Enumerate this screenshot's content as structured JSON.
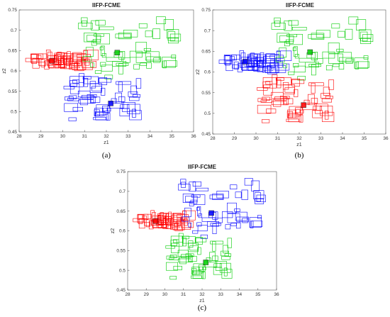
{
  "chart_data": [
    {
      "type": "scatter",
      "title": "IIFP-FCME",
      "xlabel": "z1",
      "ylabel": "z2",
      "xlim": [
        28,
        36
      ],
      "ylim": [
        0.45,
        0.75
      ],
      "xticks": [
        "28",
        "29",
        "30",
        "31",
        "32",
        "33",
        "34",
        "35",
        "36"
      ],
      "yticks": [
        "0.45",
        "0.5",
        "0.55",
        "0.6",
        "0.65",
        "0.7",
        "0.75"
      ],
      "caption": "(a)",
      "clusters": [
        {
          "color": "#ff0000",
          "center": [
            29.5,
            0.625
          ],
          "xr": [
            28.5,
            31.3
          ],
          "yr": [
            0.61,
            0.64
          ]
        },
        {
          "color": "#00cc00",
          "center": [
            32.5,
            0.645
          ],
          "xr": [
            30.9,
            35.2
          ],
          "yr": [
            0.585,
            0.725
          ]
        },
        {
          "color": "#0000ff",
          "center": [
            32.2,
            0.52
          ],
          "xr": [
            30.2,
            33.5
          ],
          "yr": [
            0.48,
            0.585
          ]
        }
      ]
    },
    {
      "type": "scatter",
      "title": "IIFP-FCME",
      "xlabel": "z1",
      "ylabel": "z2",
      "xlim": [
        28,
        36
      ],
      "ylim": [
        0.45,
        0.75
      ],
      "xticks": [
        "28",
        "29",
        "30",
        "31",
        "32",
        "33",
        "34",
        "35",
        "36"
      ],
      "yticks": [
        "0.45",
        "0.5",
        "0.55",
        "0.6",
        "0.65",
        "0.7",
        "0.75"
      ],
      "caption": "(b)",
      "clusters": [
        {
          "color": "#0000ff",
          "center": [
            29.5,
            0.625
          ],
          "xr": [
            28.5,
            31.3
          ],
          "yr": [
            0.605,
            0.64
          ]
        },
        {
          "color": "#00cc00",
          "center": [
            32.5,
            0.648
          ],
          "xr": [
            30.9,
            35.2
          ],
          "yr": [
            0.585,
            0.725
          ]
        },
        {
          "color": "#ff0000",
          "center": [
            32.2,
            0.52
          ],
          "xr": [
            30.2,
            33.5
          ],
          "yr": [
            0.48,
            0.585
          ]
        }
      ]
    },
    {
      "type": "scatter",
      "title": "IIFP-FCME",
      "xlabel": "z1",
      "ylabel": "z2",
      "xlim": [
        28,
        36
      ],
      "ylim": [
        0.45,
        0.75
      ],
      "xticks": [
        "28",
        "29",
        "30",
        "31",
        "32",
        "33",
        "34",
        "35",
        "36"
      ],
      "yticks": [
        "0.45",
        "0.5",
        "0.55",
        "0.6",
        "0.65",
        "0.7",
        "0.75"
      ],
      "caption": "(c)",
      "clusters": [
        {
          "color": "#ff0000",
          "center": [
            29.5,
            0.625
          ],
          "xr": [
            28.5,
            31.3
          ],
          "yr": [
            0.61,
            0.64
          ]
        },
        {
          "color": "#0000ff",
          "center": [
            32.5,
            0.645
          ],
          "xr": [
            30.9,
            35.2
          ],
          "yr": [
            0.585,
            0.725
          ]
        },
        {
          "color": "#00cc00",
          "center": [
            32.2,
            0.52
          ],
          "xr": [
            30.2,
            33.5
          ],
          "yr": [
            0.48,
            0.585
          ]
        }
      ]
    }
  ]
}
